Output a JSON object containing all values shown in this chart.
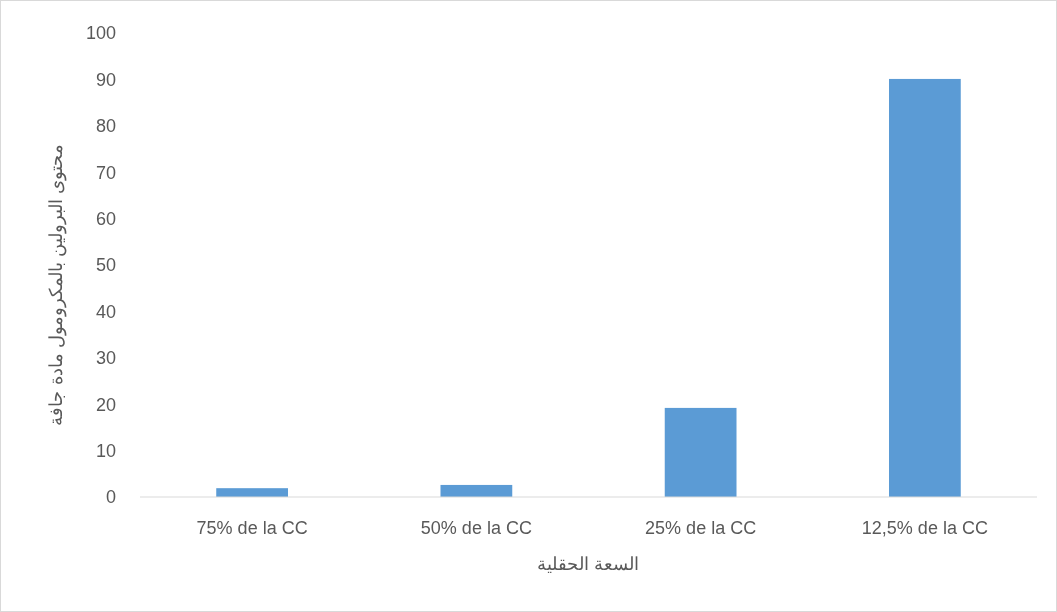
{
  "chart_data": {
    "type": "bar",
    "xlabel": "السعة الحقلية",
    "ylabel": "محتوى البرولين بالمكرومول مادة جافة",
    "categories": [
      "75% de la CC",
      "50% de la CC",
      "25% de la CC",
      "12,5% de la CC"
    ],
    "values": [
      1.9,
      2.6,
      19.2,
      90.1
    ],
    "color": "#5b9bd5",
    "ylim": [
      0,
      100
    ],
    "yticks": [
      0,
      10,
      20,
      30,
      40,
      50,
      60,
      70,
      80,
      90,
      100
    ],
    "grid": false
  }
}
